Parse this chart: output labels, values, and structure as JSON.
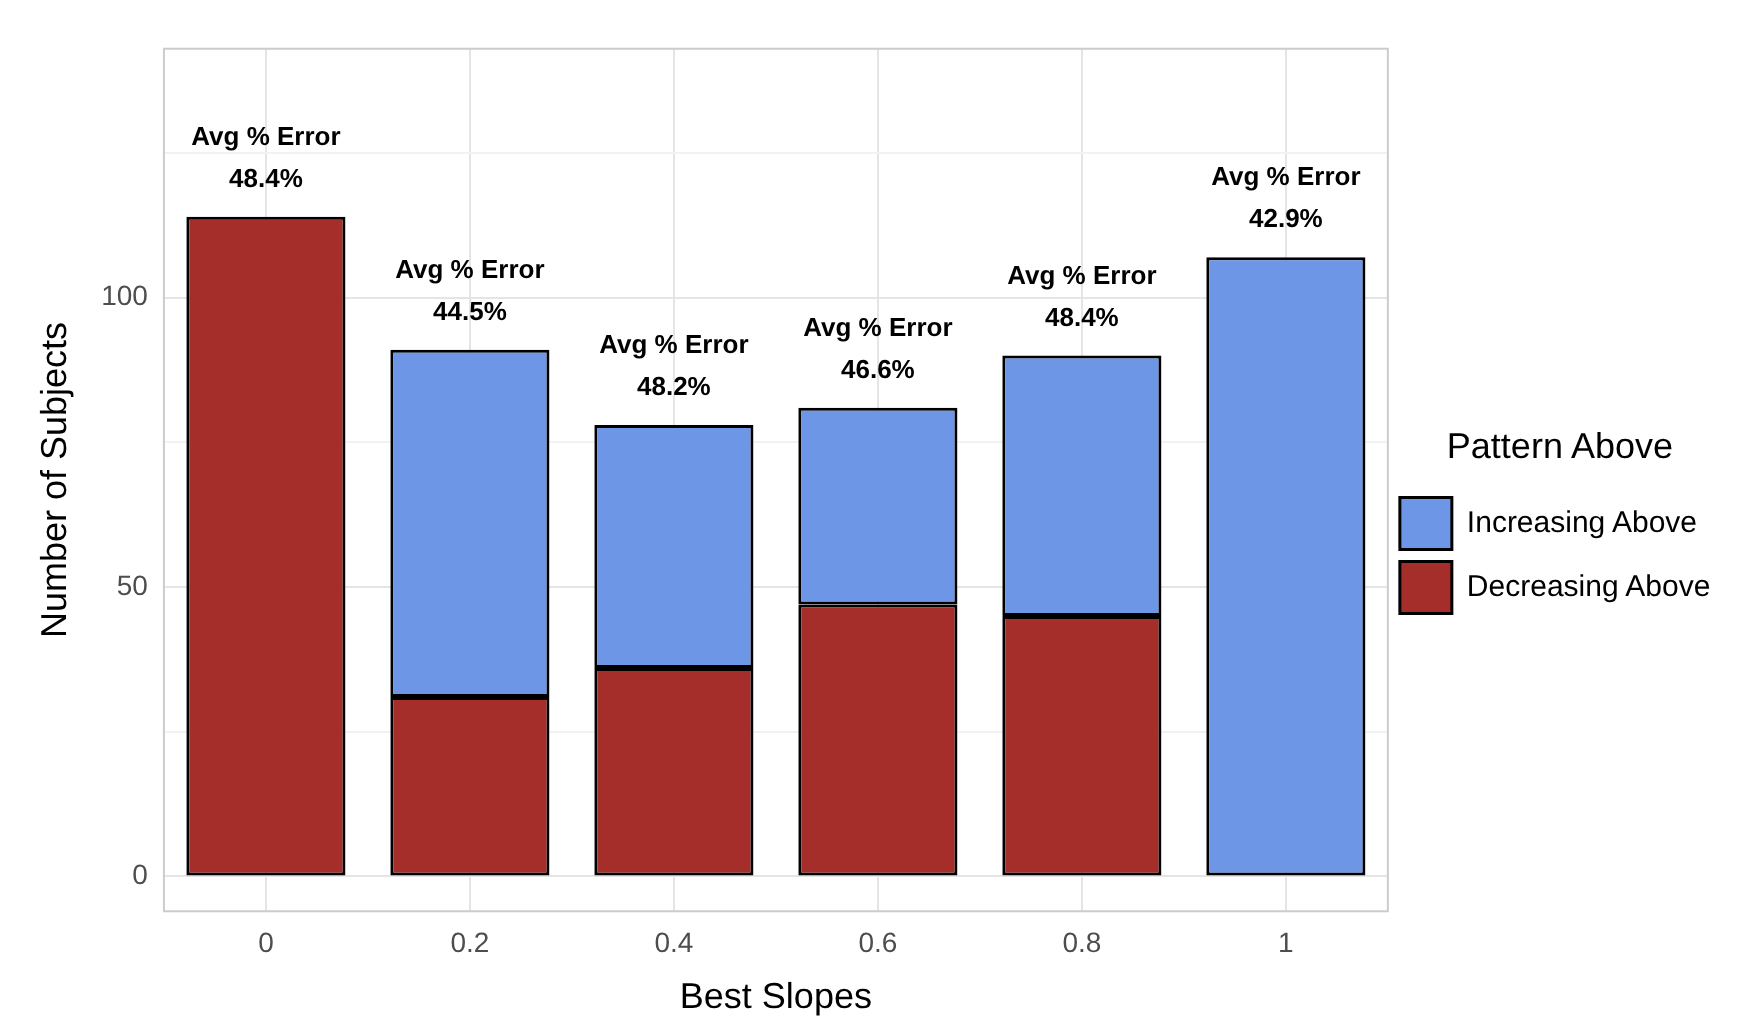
{
  "chart_data": {
    "type": "bar",
    "xlabel": "Best Slopes",
    "ylabel": "Number of Subjects",
    "legend_title": "Pattern Above",
    "categories": [
      "0",
      "0.2",
      "0.4",
      "0.6",
      "0.8",
      "1"
    ],
    "series": [
      {
        "name": "Decreasing Above",
        "color": "#a52e2b",
        "values": [
          114,
          31,
          36,
          47,
          45,
          0
        ]
      },
      {
        "name": "Increasing Above",
        "color": "#6d96e6",
        "values": [
          0,
          60,
          42,
          34,
          45,
          107
        ]
      }
    ],
    "stacked": true,
    "ylim": [
      -6,
      143
    ],
    "yticks": [
      0,
      {
        "value": 25,
        "label": null
      },
      50,
      {
        "value": 75,
        "label": null
      },
      100,
      {
        "value": 125,
        "label": null
      }
    ],
    "grid": true,
    "legend": "right",
    "annotations": [
      {
        "text": "Avg % Error\n48.4%",
        "x": "0",
        "y": 114
      },
      {
        "text": "Avg % Error\n44.5%",
        "x": "0.2",
        "y": 91
      },
      {
        "text": "Avg % Error\n48.2%",
        "x": "0.4",
        "y": 78
      },
      {
        "text": "Avg % Error\n46.6%",
        "x": "0.6",
        "y": 81
      },
      {
        "text": "Avg % Error\n48.4%",
        "x": "0.8",
        "y": 90
      },
      {
        "text": "Avg % Error\n42.9%",
        "x": "1",
        "y": 107
      }
    ]
  }
}
